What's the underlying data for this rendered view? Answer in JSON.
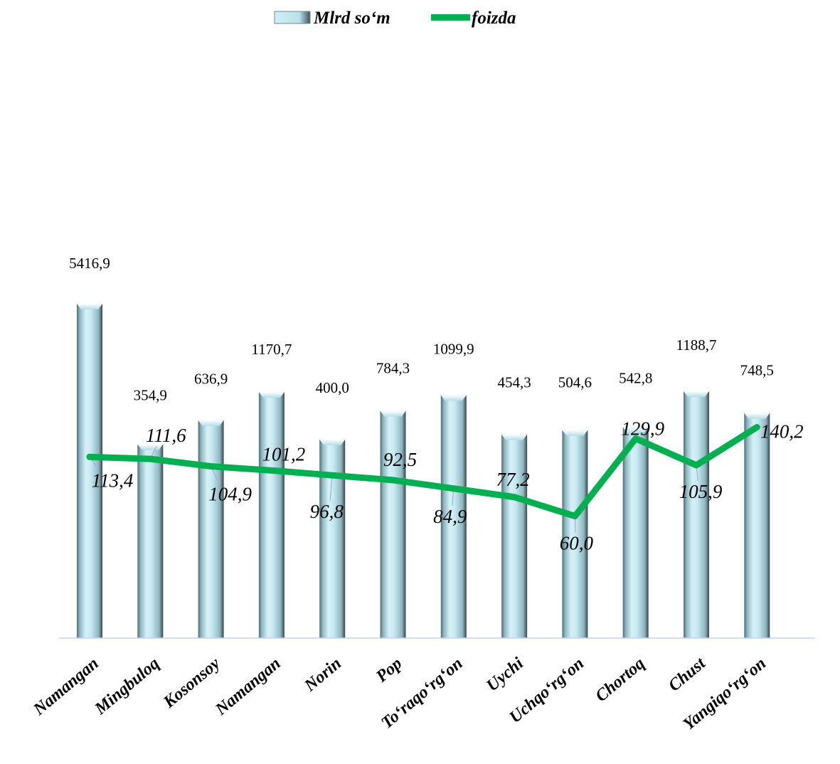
{
  "chart_data": {
    "type": "bar",
    "legend_position": "top-center",
    "grid": false,
    "categories": [
      "Namangan",
      "Mingbuloq",
      "Kosonsoy",
      "Namangan",
      "Norin",
      "Pop",
      "To‘raqo‘rg‘on",
      "Uychi",
      "Uchqo‘rg‘on",
      "Chortoq",
      "Chust",
      "Yangiqo‘rg‘on"
    ],
    "series": [
      {
        "name": "Mlrd so‘m",
        "type": "bar",
        "values": [
          5416.9,
          354.9,
          636.9,
          1170.7,
          400.0,
          784.3,
          1099.9,
          454.3,
          504.6,
          542.8,
          1188.7,
          748.5
        ],
        "labels": [
          "5416,9",
          "354,9",
          "636,9",
          "1170,7",
          "400,0",
          "784,3",
          "1099,9",
          "454,3",
          "504,6",
          "542,8",
          "1188,7",
          "748,5"
        ],
        "color": "#bfe6ee"
      },
      {
        "name": "foizda",
        "type": "line",
        "values": [
          113.4,
          111.6,
          104.9,
          101.2,
          96.8,
          92.5,
          84.9,
          77.2,
          60.0,
          129.9,
          105.9,
          140.2
        ],
        "labels": [
          "113,4",
          "111,6",
          "104,9",
          "101,2",
          "96,8",
          "92,5",
          "84,9",
          "77,2",
          "60,0",
          "129,9",
          "105,9",
          "140,2"
        ],
        "color": "#00b050"
      }
    ],
    "axis_color": "#c5d4ee"
  }
}
